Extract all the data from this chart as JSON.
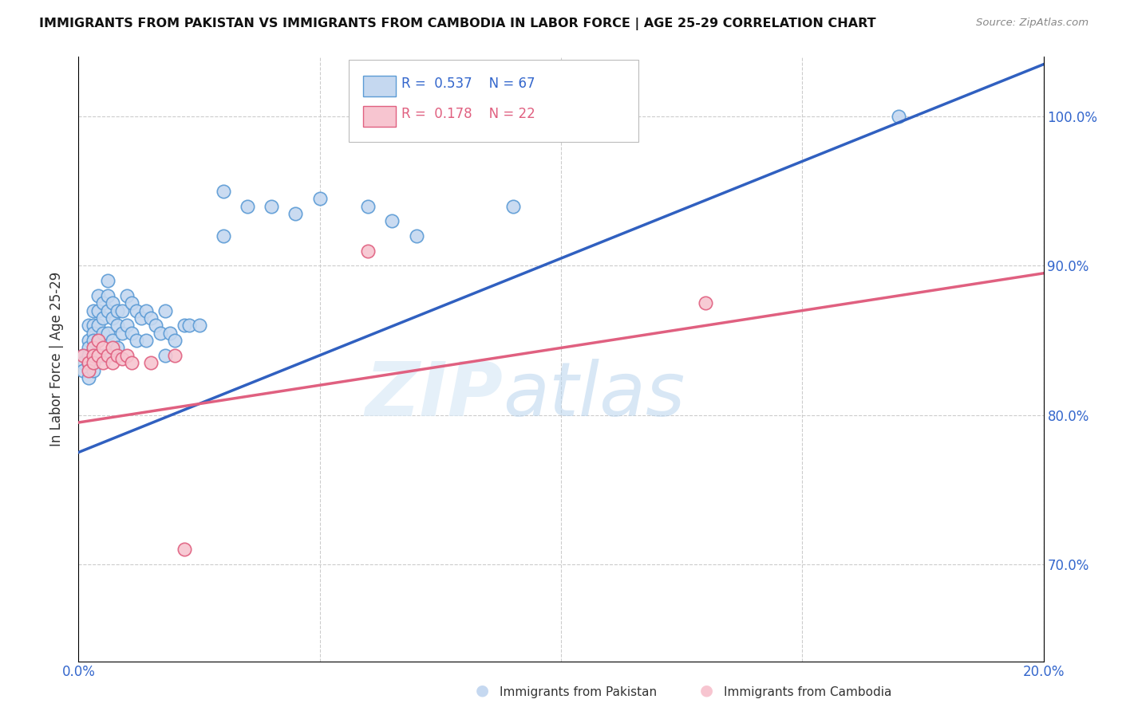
{
  "title": "IMMIGRANTS FROM PAKISTAN VS IMMIGRANTS FROM CAMBODIA IN LABOR FORCE | AGE 25-29 CORRELATION CHART",
  "source": "Source: ZipAtlas.com",
  "ylabel": "In Labor Force | Age 25-29",
  "r_pakistan": 0.537,
  "n_pakistan": 67,
  "r_cambodia": 0.178,
  "n_cambodia": 22,
  "color_pakistan_face": "#c5d8f0",
  "color_pakistan_edge": "#5b9bd5",
  "color_cambodia_face": "#f7c5d0",
  "color_cambodia_edge": "#e06080",
  "trendline_pakistan": "#3060c0",
  "trendline_cambodia": "#e06080",
  "watermark_zip": "ZIP",
  "watermark_atlas": "atlas",
  "xmin": 0.0,
  "xmax": 0.2,
  "ymin": 0.635,
  "ymax": 1.04,
  "pak_trendline_x0": 0.0,
  "pak_trendline_y0": 0.775,
  "pak_trendline_x1": 0.2,
  "pak_trendline_y1": 1.035,
  "cam_trendline_x0": 0.0,
  "cam_trendline_y0": 0.795,
  "cam_trendline_x1": 0.2,
  "cam_trendline_y1": 0.895,
  "pakistan_x": [
    0.001,
    0.001,
    0.001,
    0.002,
    0.002,
    0.002,
    0.002,
    0.002,
    0.002,
    0.003,
    0.003,
    0.003,
    0.003,
    0.003,
    0.003,
    0.003,
    0.004,
    0.004,
    0.004,
    0.004,
    0.004,
    0.005,
    0.005,
    0.005,
    0.005,
    0.006,
    0.006,
    0.006,
    0.006,
    0.007,
    0.007,
    0.007,
    0.008,
    0.008,
    0.008,
    0.009,
    0.009,
    0.01,
    0.01,
    0.011,
    0.011,
    0.012,
    0.012,
    0.013,
    0.014,
    0.014,
    0.015,
    0.016,
    0.017,
    0.018,
    0.018,
    0.019,
    0.02,
    0.022,
    0.023,
    0.025,
    0.03,
    0.03,
    0.035,
    0.04,
    0.045,
    0.05,
    0.06,
    0.065,
    0.07,
    0.09,
    0.17
  ],
  "pakistan_y": [
    0.84,
    0.835,
    0.83,
    0.86,
    0.85,
    0.845,
    0.84,
    0.835,
    0.825,
    0.87,
    0.86,
    0.855,
    0.85,
    0.84,
    0.835,
    0.83,
    0.88,
    0.87,
    0.86,
    0.85,
    0.84,
    0.875,
    0.865,
    0.855,
    0.84,
    0.89,
    0.88,
    0.87,
    0.855,
    0.875,
    0.865,
    0.85,
    0.87,
    0.86,
    0.845,
    0.87,
    0.855,
    0.88,
    0.86,
    0.875,
    0.855,
    0.87,
    0.85,
    0.865,
    0.87,
    0.85,
    0.865,
    0.86,
    0.855,
    0.87,
    0.84,
    0.855,
    0.85,
    0.86,
    0.86,
    0.86,
    0.92,
    0.95,
    0.94,
    0.94,
    0.935,
    0.945,
    0.94,
    0.93,
    0.92,
    0.94,
    1.0
  ],
  "cambodia_x": [
    0.001,
    0.002,
    0.002,
    0.003,
    0.003,
    0.003,
    0.004,
    0.004,
    0.005,
    0.005,
    0.006,
    0.007,
    0.007,
    0.008,
    0.009,
    0.01,
    0.011,
    0.015,
    0.02,
    0.022,
    0.06,
    0.13
  ],
  "cambodia_y": [
    0.84,
    0.835,
    0.83,
    0.845,
    0.84,
    0.835,
    0.85,
    0.84,
    0.845,
    0.835,
    0.84,
    0.845,
    0.835,
    0.84,
    0.838,
    0.84,
    0.835,
    0.835,
    0.84,
    0.71,
    0.91,
    0.875
  ]
}
